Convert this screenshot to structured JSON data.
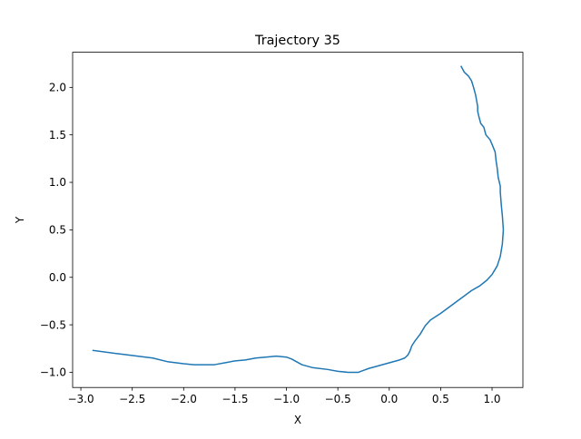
{
  "chart_data": {
    "type": "line",
    "title": "Trajectory 35",
    "xlabel": "X",
    "ylabel": "Y",
    "xlim": [
      -3.08,
      1.3
    ],
    "ylim": [
      -1.16,
      2.37
    ],
    "grid": false,
    "xticks": [
      -3.0,
      -2.5,
      -2.0,
      -1.5,
      -1.0,
      -0.5,
      0.0,
      0.5,
      1.0
    ],
    "xtick_labels": [
      "−3.0",
      "−2.5",
      "−2.0",
      "−1.5",
      "−1.0",
      "−0.5",
      "0.0",
      "0.5",
      "1.0"
    ],
    "yticks": [
      -1.0,
      -0.5,
      0.0,
      0.5,
      1.0,
      1.5,
      2.0
    ],
    "ytick_labels": [
      "−1.0",
      "−0.5",
      "0.0",
      "0.5",
      "1.0",
      "1.5",
      "2.0"
    ],
    "series": [
      {
        "color": "#1f77b4",
        "x": [
          -2.88,
          -2.6,
          -2.3,
          -2.15,
          -2.0,
          -1.9,
          -1.8,
          -1.7,
          -1.6,
          -1.5,
          -1.4,
          -1.3,
          -1.2,
          -1.1,
          -1.0,
          -0.95,
          -0.85,
          -0.75,
          -0.6,
          -0.5,
          -0.4,
          -0.3,
          -0.25,
          -0.2,
          -0.1,
          0.0,
          0.1,
          0.15,
          0.18,
          0.2,
          0.22,
          0.25,
          0.3,
          0.35,
          0.4,
          0.5,
          0.6,
          0.7,
          0.8,
          0.88,
          0.95,
          1.0,
          1.05,
          1.08,
          1.1,
          1.11,
          1.1,
          1.09,
          1.08,
          1.08,
          1.06,
          1.05,
          1.04,
          1.03,
          1.0,
          0.98,
          0.94,
          0.92,
          0.89,
          0.88,
          0.87,
          0.86,
          0.86,
          0.84,
          0.82,
          0.8,
          0.77,
          0.73,
          0.7
        ],
        "y": [
          -0.77,
          -0.81,
          -0.85,
          -0.89,
          -0.91,
          -0.92,
          -0.92,
          -0.92,
          -0.9,
          -0.88,
          -0.87,
          -0.85,
          -0.84,
          -0.83,
          -0.84,
          -0.86,
          -0.92,
          -0.95,
          -0.97,
          -0.99,
          -1.0,
          -1.0,
          -0.98,
          -0.96,
          -0.93,
          -0.9,
          -0.87,
          -0.85,
          -0.82,
          -0.78,
          -0.72,
          -0.67,
          -0.6,
          -0.51,
          -0.45,
          -0.38,
          -0.3,
          -0.22,
          -0.14,
          -0.09,
          -0.03,
          0.03,
          0.12,
          0.22,
          0.35,
          0.5,
          0.65,
          0.76,
          0.9,
          0.96,
          1.05,
          1.15,
          1.22,
          1.32,
          1.4,
          1.45,
          1.5,
          1.58,
          1.62,
          1.66,
          1.7,
          1.75,
          1.8,
          1.92,
          2.0,
          2.07,
          2.12,
          2.16,
          2.22
        ]
      }
    ]
  }
}
